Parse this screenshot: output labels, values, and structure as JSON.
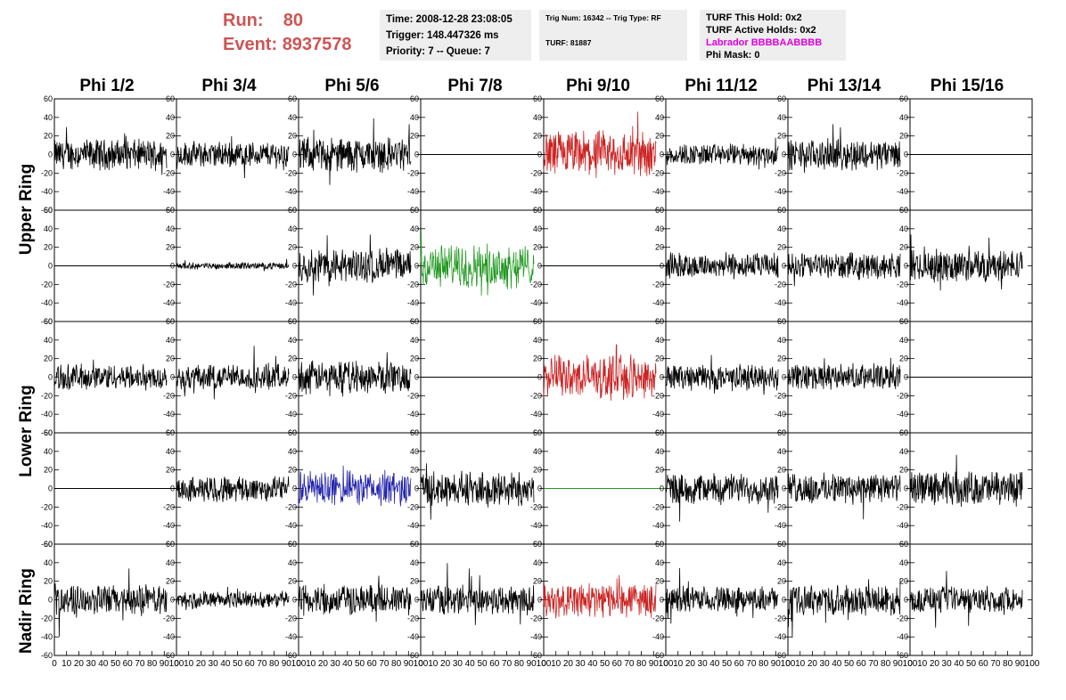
{
  "run_label": "Run:",
  "run_value": "80",
  "event_label": "Event:",
  "event_value": "8937578",
  "box1": {
    "time": "Time: 2008-12-28 23:08:05",
    "trigger": "Trigger: 148.447326 ms",
    "priority": "Priority: 7 -- Queue: 7"
  },
  "box2": {
    "trig": "Trig Num: 16342 -- Trig Type: RF",
    "turf": "TURF: 81887"
  },
  "box3": {
    "hold": "TURF This Hold: 0x2",
    "active": "TURF Active Holds: 0x2",
    "labrador": "Labrador BBBBAABBBB",
    "phimask": "Phi Mask: 0"
  },
  "columns": [
    "Phi 1/2",
    "Phi 3/4",
    "Phi 5/6",
    "Phi 7/8",
    "Phi 9/10",
    "Phi 11/12",
    "Phi 13/14",
    "Phi 15/16"
  ],
  "rings": {
    "upper": "Upper Ring",
    "lower": "Lower Ring",
    "nadir": "Nadir Ring"
  },
  "chart_data": {
    "type": "line",
    "description_grid": "5 rows x 8 columns of waveform panels",
    "xlim": [
      0,
      100
    ],
    "ylim": [
      -60,
      60
    ],
    "yticks": [
      -60,
      -40,
      -20,
      0,
      20,
      40,
      60
    ],
    "xticks": [
      0,
      10,
      20,
      30,
      40,
      50,
      60,
      70,
      80,
      90,
      100
    ],
    "grid": false,
    "colors": {
      "normal": "#000000",
      "triggered_red": "#cc2222",
      "triggered_green": "#229922",
      "triggered_blue": "#2222aa"
    },
    "panels": [
      [
        {
          "amp": 14,
          "color": "#000000"
        },
        {
          "amp": 12,
          "color": "#000000"
        },
        {
          "amp": 16,
          "color": "#000000"
        },
        {
          "amp": 0,
          "color": "#000000"
        },
        {
          "amp": 22,
          "color": "#cc2222"
        },
        {
          "amp": 10,
          "color": "#000000"
        },
        {
          "amp": 14,
          "color": "#000000"
        },
        {
          "amp": 0,
          "color": "#000000"
        }
      ],
      [
        {
          "amp": 0,
          "color": "#000000"
        },
        {
          "amp": 3,
          "color": "#000000"
        },
        {
          "amp": 16,
          "color": "#000000"
        },
        {
          "amp": 20,
          "color": "#229922"
        },
        {
          "amp": 0,
          "color": "#000000"
        },
        {
          "amp": 12,
          "color": "#000000"
        },
        {
          "amp": 12,
          "color": "#000000"
        },
        {
          "amp": 15,
          "color": "#000000"
        }
      ],
      [
        {
          "amp": 12,
          "color": "#000000"
        },
        {
          "amp": 12,
          "color": "#000000"
        },
        {
          "amp": 15,
          "color": "#000000"
        },
        {
          "amp": 0,
          "color": "#000000"
        },
        {
          "amp": 20,
          "color": "#cc2222"
        },
        {
          "amp": 12,
          "color": "#000000"
        },
        {
          "amp": 12,
          "color": "#000000"
        },
        {
          "amp": 0,
          "color": "#000000"
        }
      ],
      [
        {
          "amp": 0,
          "color": "#000000"
        },
        {
          "amp": 12,
          "color": "#000000"
        },
        {
          "amp": 16,
          "color": "#2222aa"
        },
        {
          "amp": 16,
          "color": "#000000"
        },
        {
          "amp": 0,
          "color": "#229922"
        },
        {
          "amp": 14,
          "color": "#000000"
        },
        {
          "amp": 14,
          "color": "#000000"
        },
        {
          "amp": 16,
          "color": "#000000"
        }
      ],
      [
        {
          "amp": 14,
          "color": "#000000"
        },
        {
          "amp": 8,
          "color": "#000000"
        },
        {
          "amp": 14,
          "color": "#000000"
        },
        {
          "amp": 14,
          "color": "#000000"
        },
        {
          "amp": 16,
          "color": "#cc2222"
        },
        {
          "amp": 12,
          "color": "#000000"
        },
        {
          "amp": 14,
          "color": "#000000"
        },
        {
          "amp": 12,
          "color": "#000000"
        }
      ]
    ]
  }
}
